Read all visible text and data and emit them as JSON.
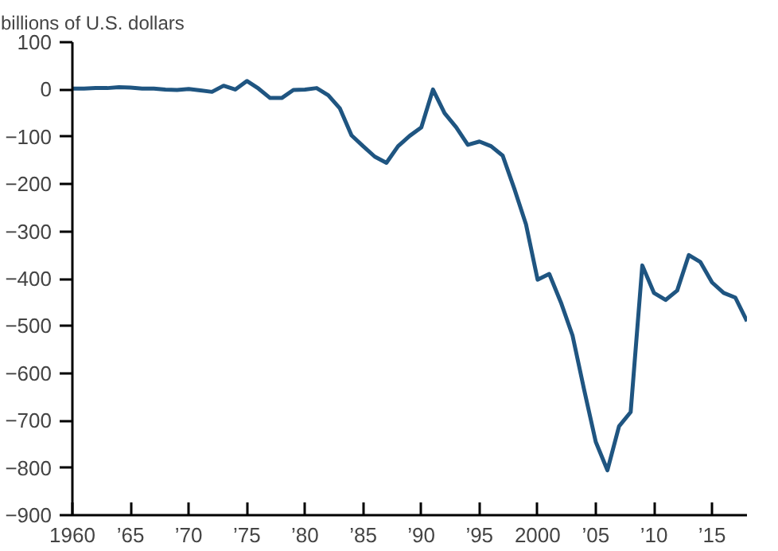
{
  "chart_data": {
    "type": "line",
    "ylabel": "billions of U.S. dollars",
    "x": [
      1960,
      1961,
      1962,
      1963,
      1964,
      1965,
      1966,
      1967,
      1968,
      1969,
      1970,
      1971,
      1972,
      1973,
      1974,
      1975,
      1976,
      1977,
      1978,
      1979,
      1980,
      1981,
      1982,
      1983,
      1984,
      1985,
      1986,
      1987,
      1988,
      1989,
      1990,
      1991,
      1992,
      1993,
      1994,
      1995,
      1996,
      1997,
      1998,
      1999,
      2000,
      2001,
      2002,
      2003,
      2004,
      2005,
      2006,
      2007,
      2008,
      2009,
      2010,
      2011,
      2012,
      2013,
      2014,
      2015,
      2016,
      2017,
      2018
    ],
    "series": [
      {
        "color": "#1f5581",
        "values": [
          2,
          2,
          3,
          3,
          5,
          4,
          2,
          2,
          0,
          -1,
          1,
          -2,
          -5,
          8,
          0,
          18,
          2,
          -18,
          -18,
          -1,
          0,
          3,
          -12,
          -40,
          -97,
          -120,
          -142,
          -155,
          -120,
          -98,
          -80,
          0,
          -50,
          -80,
          -117,
          -110,
          -120,
          -140,
          -210,
          -285,
          -402,
          -390,
          -450,
          -520,
          -635,
          -745,
          -805,
          -712,
          -682,
          -372,
          -430,
          -445,
          -425,
          -350,
          -365,
          -408,
          -430,
          -440,
          -490
        ]
      }
    ],
    "xlim": [
      1960,
      2018
    ],
    "xticks": [
      1960,
      {
        "value": 1965,
        "label": "’65"
      },
      {
        "value": 1970,
        "label": "’70"
      },
      {
        "value": 1975,
        "label": "’75"
      },
      {
        "value": 1980,
        "label": "’80"
      },
      {
        "value": 1985,
        "label": "’85"
      },
      {
        "value": 1990,
        "label": "’90"
      },
      {
        "value": 1995,
        "label": "’95"
      },
      2000,
      {
        "value": 2005,
        "label": "’05"
      },
      {
        "value": 2010,
        "label": "’10"
      },
      {
        "value": 2015,
        "label": "’15"
      }
    ],
    "ylim": [
      -900,
      100
    ],
    "yticks": [
      100,
      0,
      -100,
      -200,
      -300,
      -400,
      -500,
      -600,
      -700,
      -800,
      -900
    ],
    "grid": false,
    "line_style": "solid"
  }
}
